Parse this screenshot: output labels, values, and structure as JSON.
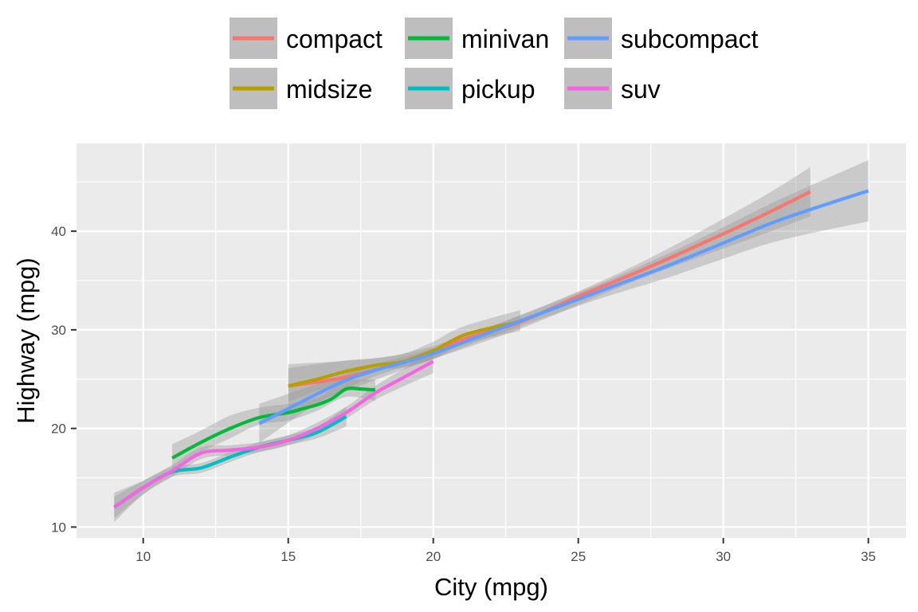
{
  "chart_data": {
    "type": "line",
    "xlabel": "City (mpg)",
    "ylabel": "Highway (mpg)",
    "xlim": [
      7.7,
      36.3
    ],
    "ylim": [
      8.9,
      48.9
    ],
    "x_ticks": [
      10,
      15,
      20,
      25,
      30,
      35
    ],
    "y_ticks": [
      10,
      20,
      30,
      40
    ],
    "grid": true,
    "legend_position": "top",
    "band_color": "#999999",
    "series": [
      {
        "name": "compact",
        "color": "#F8766D",
        "points": [
          [
            15,
            24.3
          ],
          [
            17,
            25.2
          ],
          [
            19,
            26.8
          ],
          [
            21,
            29.0
          ],
          [
            23,
            30.8
          ],
          [
            25,
            33.4
          ],
          [
            27,
            35.8
          ],
          [
            29,
            38.4
          ],
          [
            31,
            41.1
          ],
          [
            33,
            44.0
          ]
        ],
        "band": [
          [
            15,
            21.5,
            26.5
          ],
          [
            19,
            26.0,
            27.6
          ],
          [
            23,
            30.1,
            31.5
          ],
          [
            27,
            35.0,
            36.6
          ],
          [
            31,
            39.3,
            42.9
          ],
          [
            33,
            41.5,
            46.5
          ]
        ]
      },
      {
        "name": "midsize",
        "color": "#B79F00",
        "points": [
          [
            15,
            24.3
          ],
          [
            16,
            25.0
          ],
          [
            17,
            25.8
          ],
          [
            18,
            26.4
          ],
          [
            19,
            26.8
          ],
          [
            20,
            27.9
          ],
          [
            21,
            29.4
          ],
          [
            22,
            30.2
          ],
          [
            23,
            30.8
          ]
        ],
        "band": [
          [
            15,
            22.7,
            26.1
          ],
          [
            17,
            24.9,
            26.9
          ],
          [
            18,
            25.9,
            27.1
          ],
          [
            19,
            26.2,
            27.6
          ],
          [
            20,
            27.0,
            28.8
          ],
          [
            21,
            28.5,
            30.3
          ],
          [
            23,
            29.9,
            32.0
          ]
        ]
      },
      {
        "name": "minivan",
        "color": "#00BA38",
        "points": [
          [
            11,
            17.0
          ],
          [
            12,
            18.6
          ],
          [
            13,
            20.0
          ],
          [
            14,
            21.1
          ],
          [
            15,
            21.6
          ],
          [
            15.5,
            22.0
          ],
          [
            16,
            22.4
          ],
          [
            16.5,
            23.0
          ],
          [
            17,
            24.0
          ],
          [
            17.5,
            24.0
          ],
          [
            18,
            23.9
          ]
        ],
        "band": [
          [
            11,
            15.6,
            18.4
          ],
          [
            12,
            17.6,
            19.8
          ],
          [
            13,
            19.0,
            21.3
          ],
          [
            14,
            20.4,
            22.1
          ],
          [
            15,
            20.8,
            22.5
          ],
          [
            16,
            21.8,
            23.1
          ],
          [
            17,
            23.2,
            24.8
          ],
          [
            18,
            22.8,
            25.0
          ]
        ]
      },
      {
        "name": "pickup",
        "color": "#00BFC4",
        "points": [
          [
            9,
            12.0
          ],
          [
            10,
            14.0
          ],
          [
            11,
            15.6
          ],
          [
            12,
            16.0
          ],
          [
            13,
            17.1
          ],
          [
            14,
            18.1
          ],
          [
            15,
            18.8
          ],
          [
            16,
            19.6
          ],
          [
            17,
            21.2
          ]
        ],
        "band": [
          [
            9,
            10.9,
            13.1
          ],
          [
            10,
            13.3,
            14.7
          ],
          [
            11,
            15.1,
            16.1
          ],
          [
            12,
            15.5,
            16.5
          ],
          [
            13,
            16.6,
            17.6
          ],
          [
            14,
            17.6,
            18.6
          ],
          [
            15,
            18.3,
            19.3
          ],
          [
            16,
            19.0,
            20.2
          ],
          [
            17,
            20.2,
            22.2
          ]
        ]
      },
      {
        "name": "subcompact",
        "color": "#619CFF",
        "points": [
          [
            14,
            20.5
          ],
          [
            15,
            22.0
          ],
          [
            16,
            23.5
          ],
          [
            17,
            24.9
          ],
          [
            18,
            25.9
          ],
          [
            19,
            26.7
          ],
          [
            20,
            27.6
          ],
          [
            22,
            29.8
          ],
          [
            24,
            32.0
          ],
          [
            26,
            34.2
          ],
          [
            28,
            36.4
          ],
          [
            30,
            38.8
          ],
          [
            32,
            41.2
          ],
          [
            35,
            44.1
          ]
        ],
        "band": [
          [
            14,
            18.5,
            22.5
          ],
          [
            16,
            22.5,
            24.5
          ],
          [
            18,
            25.3,
            26.5
          ],
          [
            20,
            27.1,
            28.1
          ],
          [
            22,
            29.3,
            30.3
          ],
          [
            24,
            31.4,
            32.6
          ],
          [
            26,
            33.4,
            35.0
          ],
          [
            28,
            35.2,
            37.6
          ],
          [
            30,
            37.2,
            40.4
          ],
          [
            32,
            39.1,
            43.3
          ],
          [
            35,
            41.0,
            47.2
          ]
        ]
      },
      {
        "name": "suv",
        "color": "#F564E3",
        "points": [
          [
            9,
            12.0
          ],
          [
            10,
            14.0
          ],
          [
            11,
            15.7
          ],
          [
            12,
            17.5
          ],
          [
            13,
            17.8
          ],
          [
            14,
            18.1
          ],
          [
            15,
            18.8
          ],
          [
            16,
            20.0
          ],
          [
            17,
            21.6
          ],
          [
            18,
            23.6
          ],
          [
            19,
            25.2
          ],
          [
            20,
            26.8
          ]
        ],
        "band": [
          [
            9,
            10.5,
            13.5
          ],
          [
            10,
            13.3,
            14.7
          ],
          [
            11,
            15.1,
            16.3
          ],
          [
            12,
            16.9,
            18.1
          ],
          [
            13,
            17.3,
            18.3
          ],
          [
            14,
            17.6,
            18.6
          ],
          [
            15,
            18.3,
            19.3
          ],
          [
            16,
            19.4,
            20.6
          ],
          [
            17,
            21.0,
            22.2
          ],
          [
            18,
            22.9,
            24.3
          ],
          [
            19,
            24.3,
            26.1
          ],
          [
            20,
            25.6,
            28.0
          ]
        ]
      }
    ]
  }
}
